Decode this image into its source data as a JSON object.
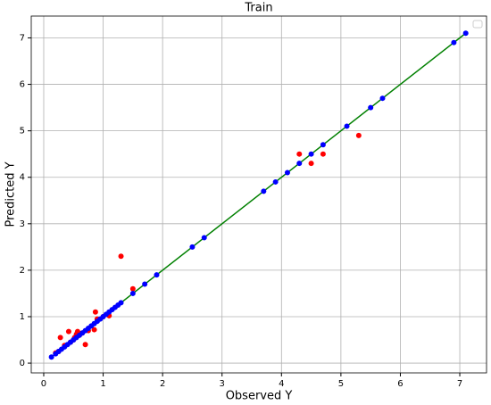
{
  "chart_data": {
    "type": "scatter",
    "title": "Train",
    "xlabel": "Observed Y",
    "ylabel": "Predicted Y",
    "xlim": [
      -0.21,
      7.45
    ],
    "ylim": [
      -0.21,
      7.47
    ],
    "xticks": [
      0,
      1,
      2,
      3,
      4,
      5,
      6,
      7
    ],
    "yticks": [
      0,
      1,
      2,
      3,
      4,
      5,
      6,
      7
    ],
    "grid": true,
    "series": [
      {
        "type": "scatter",
        "color": "#ff0000",
        "x": [
          0.2,
          0.25,
          0.28,
          0.35,
          0.42,
          0.45,
          0.5,
          0.52,
          0.55,
          0.57,
          0.6,
          0.65,
          0.7,
          0.75,
          0.85,
          0.87,
          0.9,
          1.0,
          1.1,
          1.3,
          1.5,
          4.3,
          4.5,
          4.7,
          5.3
        ],
        "values": [
          0.22,
          0.25,
          0.55,
          0.38,
          0.68,
          0.45,
          0.5,
          0.55,
          0.62,
          0.68,
          0.6,
          0.65,
          0.4,
          0.7,
          0.72,
          1.1,
          0.95,
          1.0,
          1.02,
          2.3,
          1.6,
          4.5,
          4.3,
          4.5,
          4.9
        ]
      },
      {
        "type": "line",
        "color": "#008000",
        "x": [
          0.13,
          7.1
        ],
        "values": [
          0.13,
          7.1
        ]
      },
      {
        "type": "scatter",
        "color": "#0000ff",
        "x": [
          0.13,
          0.2,
          0.25,
          0.3,
          0.35,
          0.4,
          0.45,
          0.5,
          0.55,
          0.6,
          0.65,
          0.7,
          0.75,
          0.8,
          0.85,
          0.9,
          0.95,
          1.0,
          1.05,
          1.1,
          1.15,
          1.2,
          1.25,
          1.3,
          1.5,
          1.7,
          1.9,
          2.5,
          2.7,
          3.7,
          3.9,
          4.1,
          4.3,
          4.5,
          4.7,
          5.1,
          5.5,
          5.7,
          6.9,
          7.1
        ],
        "values": [
          0.13,
          0.2,
          0.25,
          0.3,
          0.35,
          0.4,
          0.45,
          0.5,
          0.55,
          0.6,
          0.65,
          0.7,
          0.75,
          0.8,
          0.85,
          0.9,
          0.95,
          1.0,
          1.05,
          1.1,
          1.15,
          1.2,
          1.25,
          1.3,
          1.5,
          1.7,
          1.9,
          2.5,
          2.7,
          3.7,
          3.9,
          4.1,
          4.3,
          4.5,
          4.7,
          5.1,
          5.5,
          5.7,
          6.9,
          7.1
        ]
      }
    ]
  }
}
